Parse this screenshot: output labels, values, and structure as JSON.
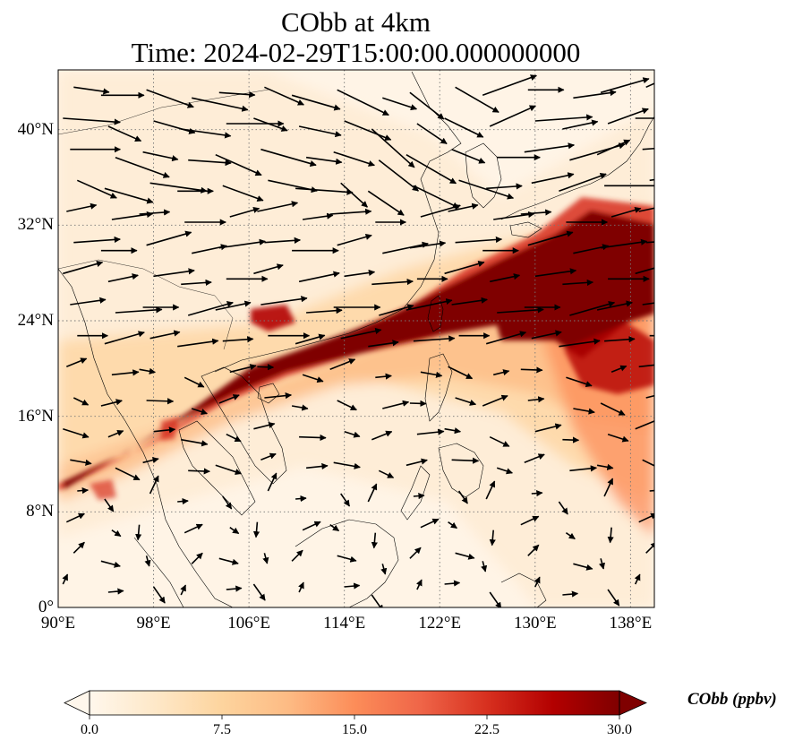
{
  "title": {
    "line1": "CObb at 4km",
    "line2": "Time: 2024-02-29T15:00:00.000000000"
  },
  "map": {
    "projection": "PlateCarree",
    "lon_range": [
      90,
      140
    ],
    "lat_range": [
      0,
      45
    ],
    "gridlines": "dotted",
    "coastlines": true,
    "field_variable": "CObb",
    "wind_vectors": true
  },
  "axes": {
    "x_ticks": [
      {
        "value": 90,
        "label": "90°E"
      },
      {
        "value": 98,
        "label": "98°E"
      },
      {
        "value": 106,
        "label": "106°E"
      },
      {
        "value": 114,
        "label": "114°E"
      },
      {
        "value": 122,
        "label": "122°E"
      },
      {
        "value": 130,
        "label": "130°E"
      },
      {
        "value": 138,
        "label": "138°E"
      }
    ],
    "y_ticks": [
      {
        "value": 0,
        "label": "0°"
      },
      {
        "value": 8,
        "label": "8°N"
      },
      {
        "value": 16,
        "label": "16°N"
      },
      {
        "value": 24,
        "label": "24°N"
      },
      {
        "value": 32,
        "label": "32°N"
      },
      {
        "value": 40,
        "label": "40°N"
      }
    ]
  },
  "colorbar": {
    "title": "CObb (ppbv)",
    "min": 0,
    "max": 30,
    "extend": "both",
    "colormap": "OrRd",
    "ticks": [
      "0.0",
      "7.5",
      "15.0",
      "22.5",
      "30.0"
    ],
    "colors": [
      "#fff7ec",
      "#fee8c8",
      "#fdd49e",
      "#fdbb84",
      "#fc8d59",
      "#ef6548",
      "#d7301f",
      "#b30000",
      "#7f0000"
    ]
  }
}
